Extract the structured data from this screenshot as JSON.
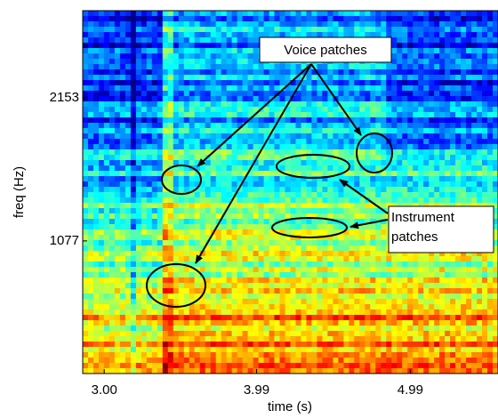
{
  "chart_data": {
    "type": "spectrogram",
    "xlabel": "time (s)",
    "ylabel": "freq (Hz)",
    "xlim": [
      2.86,
      5.56
    ],
    "xticks": [
      {
        "value": 3.0,
        "label": "3.00"
      },
      3.99,
      4.99
    ],
    "ylim": [
      80,
      2808
    ],
    "yticks": [
      1077,
      2153
    ],
    "annotations": [
      "Voice patches",
      "Instrument patches"
    ]
  }
}
